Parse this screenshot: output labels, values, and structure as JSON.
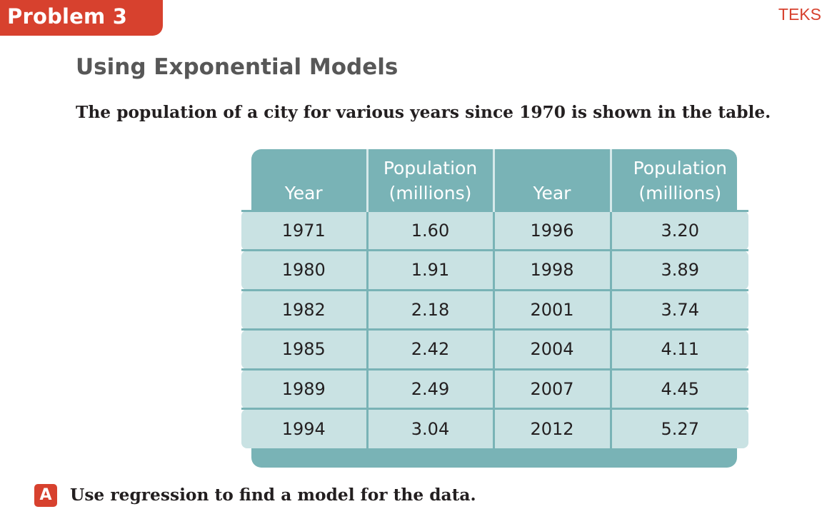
{
  "header": {
    "problem_label": "Problem 3",
    "teks_label": "TEKS"
  },
  "section": {
    "title": "Using Exponential Models",
    "intro": "The population of a city for various years since 1970 is shown in the table."
  },
  "table": {
    "headers": [
      [
        "Year"
      ],
      [
        "Population",
        "(millions)"
      ],
      [
        "Year"
      ],
      [
        "Population",
        "(millions)"
      ]
    ],
    "rows": [
      [
        "1971",
        "1.60",
        "1996",
        "3.20"
      ],
      [
        "1980",
        "1.91",
        "1998",
        "3.89"
      ],
      [
        "1982",
        "2.18",
        "2001",
        "3.74"
      ],
      [
        "1985",
        "2.42",
        "2004",
        "4.11"
      ],
      [
        "1989",
        "2.49",
        "2007",
        "4.45"
      ],
      [
        "1994",
        "3.04",
        "2012",
        "5.27"
      ]
    ]
  },
  "part_a": {
    "badge": "A",
    "text": "Use regression to find a model for the data."
  },
  "colors": {
    "accent_red": "#d7412e",
    "table_header_teal": "#79b3b6",
    "table_cell_light": "#c9e2e3",
    "title_gray": "#575757"
  }
}
